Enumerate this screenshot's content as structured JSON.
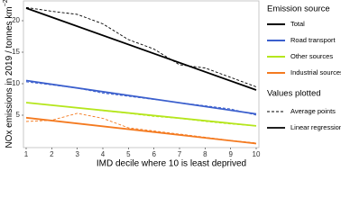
{
  "chart_data": {
    "type": "line",
    "x_label": "IMD decile where 10 is least deprived",
    "y_label": "NOx emissions in 2019 / tonnes km",
    "y_label_sup": "−2",
    "x": [
      1,
      2,
      3,
      4,
      5,
      6,
      7,
      8,
      9,
      10
    ],
    "xlim": [
      1,
      10
    ],
    "xticks": [
      1,
      2,
      3,
      4,
      5,
      6,
      7,
      8,
      9,
      10
    ],
    "ylim": [
      0,
      23
    ],
    "yticks": [
      5,
      10,
      15,
      20
    ],
    "legend_title": "Emission source",
    "series": [
      {
        "name": "Total",
        "color": "#000000",
        "values": [
          22.1,
          21.5,
          21,
          19.5,
          17,
          15.5,
          13,
          12.5,
          11,
          9.5
        ],
        "regression": [
          22,
          9
        ]
      },
      {
        "name": "Road transport",
        "color": "#3b5fcd",
        "values": [
          10.3,
          9.8,
          9.3,
          8.5,
          8,
          7.5,
          7,
          6.5,
          6,
          5
        ],
        "regression": [
          10.5,
          5.2
        ]
      },
      {
        "name": "Other sources",
        "color": "#b5e61d",
        "values": [
          7,
          6.6,
          6.2,
          5.7,
          5.3,
          4.8,
          4.5,
          4,
          3.6,
          3.3
        ],
        "regression": [
          7,
          3.3
        ]
      },
      {
        "name": "Industrial sources",
        "color": "#f47a20",
        "values": [
          4,
          4.2,
          5.3,
          4.5,
          3,
          2.5,
          2,
          1.5,
          1,
          0.6
        ],
        "regression": [
          4.6,
          0.5
        ]
      }
    ],
    "styles_title": "Values plotted",
    "styles": [
      {
        "label": "Average points",
        "dashed": true
      },
      {
        "label": "Linear regression",
        "dashed": false
      }
    ]
  }
}
